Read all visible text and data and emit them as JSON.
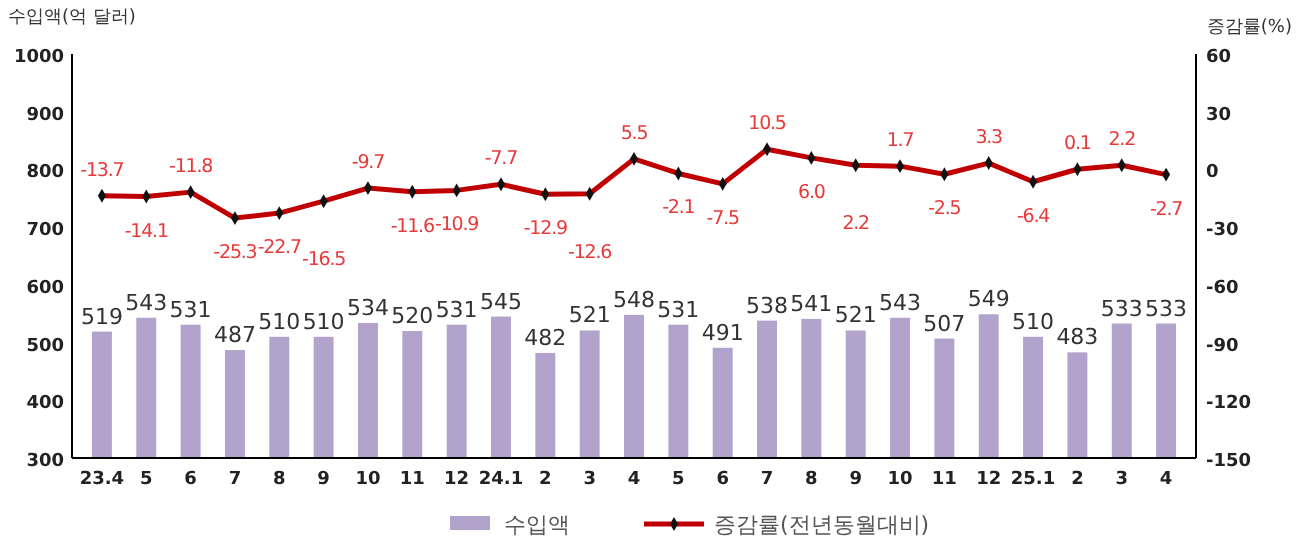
{
  "chart_data": {
    "type": "bar",
    "ylabel": "수입액(억 달러)",
    "y2label": "증감률(%)",
    "categories": [
      "23.4",
      "5",
      "6",
      "7",
      "8",
      "9",
      "10",
      "11",
      "12",
      "24.1",
      "2",
      "3",
      "4",
      "5",
      "6",
      "7",
      "8",
      "9",
      "10",
      "11",
      "12",
      "25.1",
      "2",
      "3",
      "4"
    ],
    "series": [
      {
        "name": "수입액",
        "color": "#b1a3cc",
        "values": [
          519,
          543,
          531,
          487,
          510,
          510,
          534,
          520,
          531,
          545,
          482,
          521,
          548,
          531,
          491,
          538,
          541,
          521,
          543,
          507,
          549,
          510,
          483,
          533,
          533
        ]
      },
      {
        "name": "증감률(전년동월대비)",
        "type": "line",
        "axis": "y2",
        "color": "#c00000",
        "marker": "diamond",
        "values": [
          -13.7,
          -14.1,
          -11.8,
          -25.3,
          -22.7,
          -16.5,
          -9.7,
          -11.6,
          -10.9,
          -7.7,
          -12.9,
          -12.6,
          5.5,
          -2.1,
          -7.5,
          10.5,
          6.0,
          2.2,
          1.7,
          -2.5,
          3.3,
          -6.4,
          0.1,
          2.2,
          -2.7
        ],
        "value_labels": [
          "-13.7",
          "-14.1",
          "-11.8",
          "-25.3",
          "-22.7",
          "-16.5",
          "-9.7",
          "-11.6",
          "-10.9",
          "-7.7",
          "-12.9",
          "-12.6",
          "5.5",
          "-2.1",
          "-7.5",
          "10.5",
          "6.0",
          "2.2",
          "1.7",
          "-2.5",
          "3.3",
          "-6.4",
          "0.1",
          "2.2",
          "-2.7"
        ]
      }
    ],
    "data_labels": true,
    "ylim": [
      300,
      1000
    ],
    "yticks": [
      300,
      400,
      500,
      600,
      700,
      800,
      900,
      1000
    ],
    "y2lim": [
      -150,
      60
    ],
    "y2ticks": [
      -150,
      -120,
      -90,
      -60,
      -30,
      0,
      30,
      60
    ],
    "grid": false,
    "legend": "bottom"
  }
}
